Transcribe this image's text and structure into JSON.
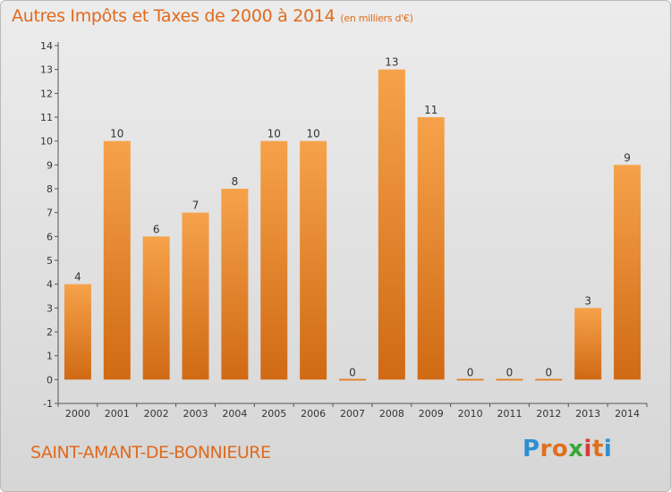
{
  "header": {
    "title": "Autres Impôts et Taxes de 2000 à 2014",
    "unit": "(en milliers d'€)"
  },
  "footer": {
    "commune": "SAINT-AMANT-DE-BONNIEURE",
    "brand": "Proxiti"
  },
  "colors": {
    "bar_light": "#f6a24a",
    "bar_dark": "#d06a14",
    "title": "#e06a1c",
    "axis": "#555555"
  },
  "chart_data": {
    "type": "bar",
    "title": "Autres Impôts et Taxes de 2000 à 2014",
    "categories": [
      "2000",
      "2001",
      "2002",
      "2003",
      "2004",
      "2005",
      "2006",
      "2007",
      "2008",
      "2009",
      "2010",
      "2011",
      "2012",
      "2013",
      "2014"
    ],
    "values": [
      4,
      10,
      6,
      7,
      8,
      10,
      10,
      0,
      13,
      11,
      0,
      0,
      0,
      3,
      9
    ],
    "ylim": [
      -1,
      14
    ],
    "yticks": [
      -1,
      0,
      1,
      2,
      3,
      4,
      5,
      6,
      7,
      8,
      9,
      10,
      11,
      12,
      13,
      14
    ],
    "xlabel": "",
    "ylabel": "",
    "grid": false,
    "data_labels": true
  }
}
